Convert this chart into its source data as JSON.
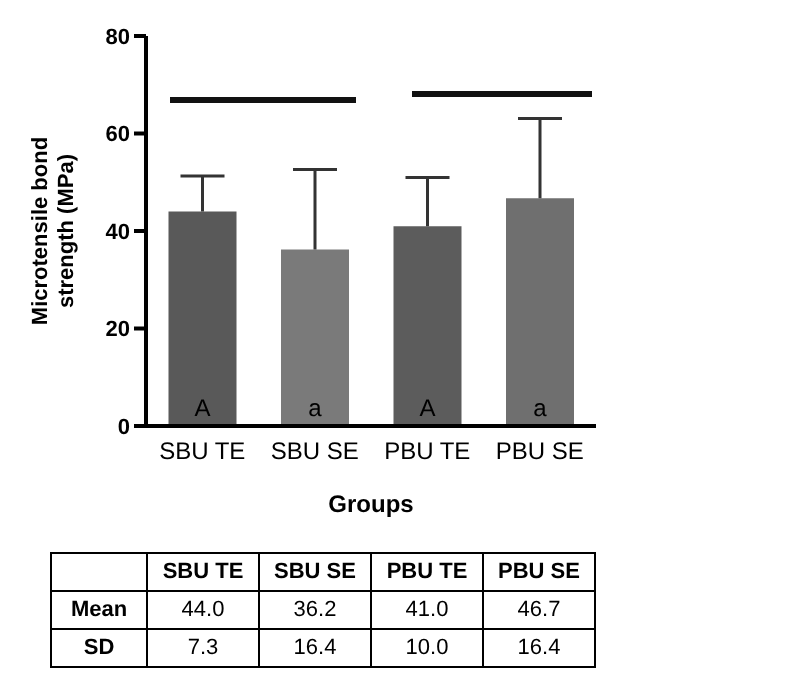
{
  "chart_data": {
    "type": "bar",
    "xlabel": "Groups",
    "ylabel": "Microtensile bond strength (MPa)",
    "categories": [
      "SBU TE",
      "SBU SE",
      "PBU TE",
      "PBU SE"
    ],
    "values": [
      44.0,
      36.2,
      41.0,
      46.7
    ],
    "errors": [
      [
        44.0,
        51.3
      ],
      [
        36.2,
        52.6
      ],
      [
        41.0,
        51.0
      ],
      [
        46.7,
        63.1
      ]
    ],
    "value_labels": [
      "44.0",
      "36.2",
      "41.0",
      "46.7"
    ],
    "colors": [
      "#595959",
      "#7a7a7a",
      "#5c5c5c",
      "#6f6f6f"
    ],
    "ylim": [
      0,
      80
    ],
    "yticks": [
      0,
      20,
      40,
      60,
      80
    ],
    "grid": false,
    "legend": false,
    "annotations": [
      "Mean",
      "SD",
      "7.3",
      "16.4",
      "10.0",
      "16.4",
      {
        "text": "A",
        "x": "SBU TE",
        "y": 2
      },
      {
        "text": "a",
        "x": "SBU SE",
        "y": 2
      },
      {
        "text": "A",
        "x": "PBU TE",
        "y": 2
      },
      {
        "text": "a",
        "x": "PBU SE",
        "y": 2
      }
    ]
  }
}
